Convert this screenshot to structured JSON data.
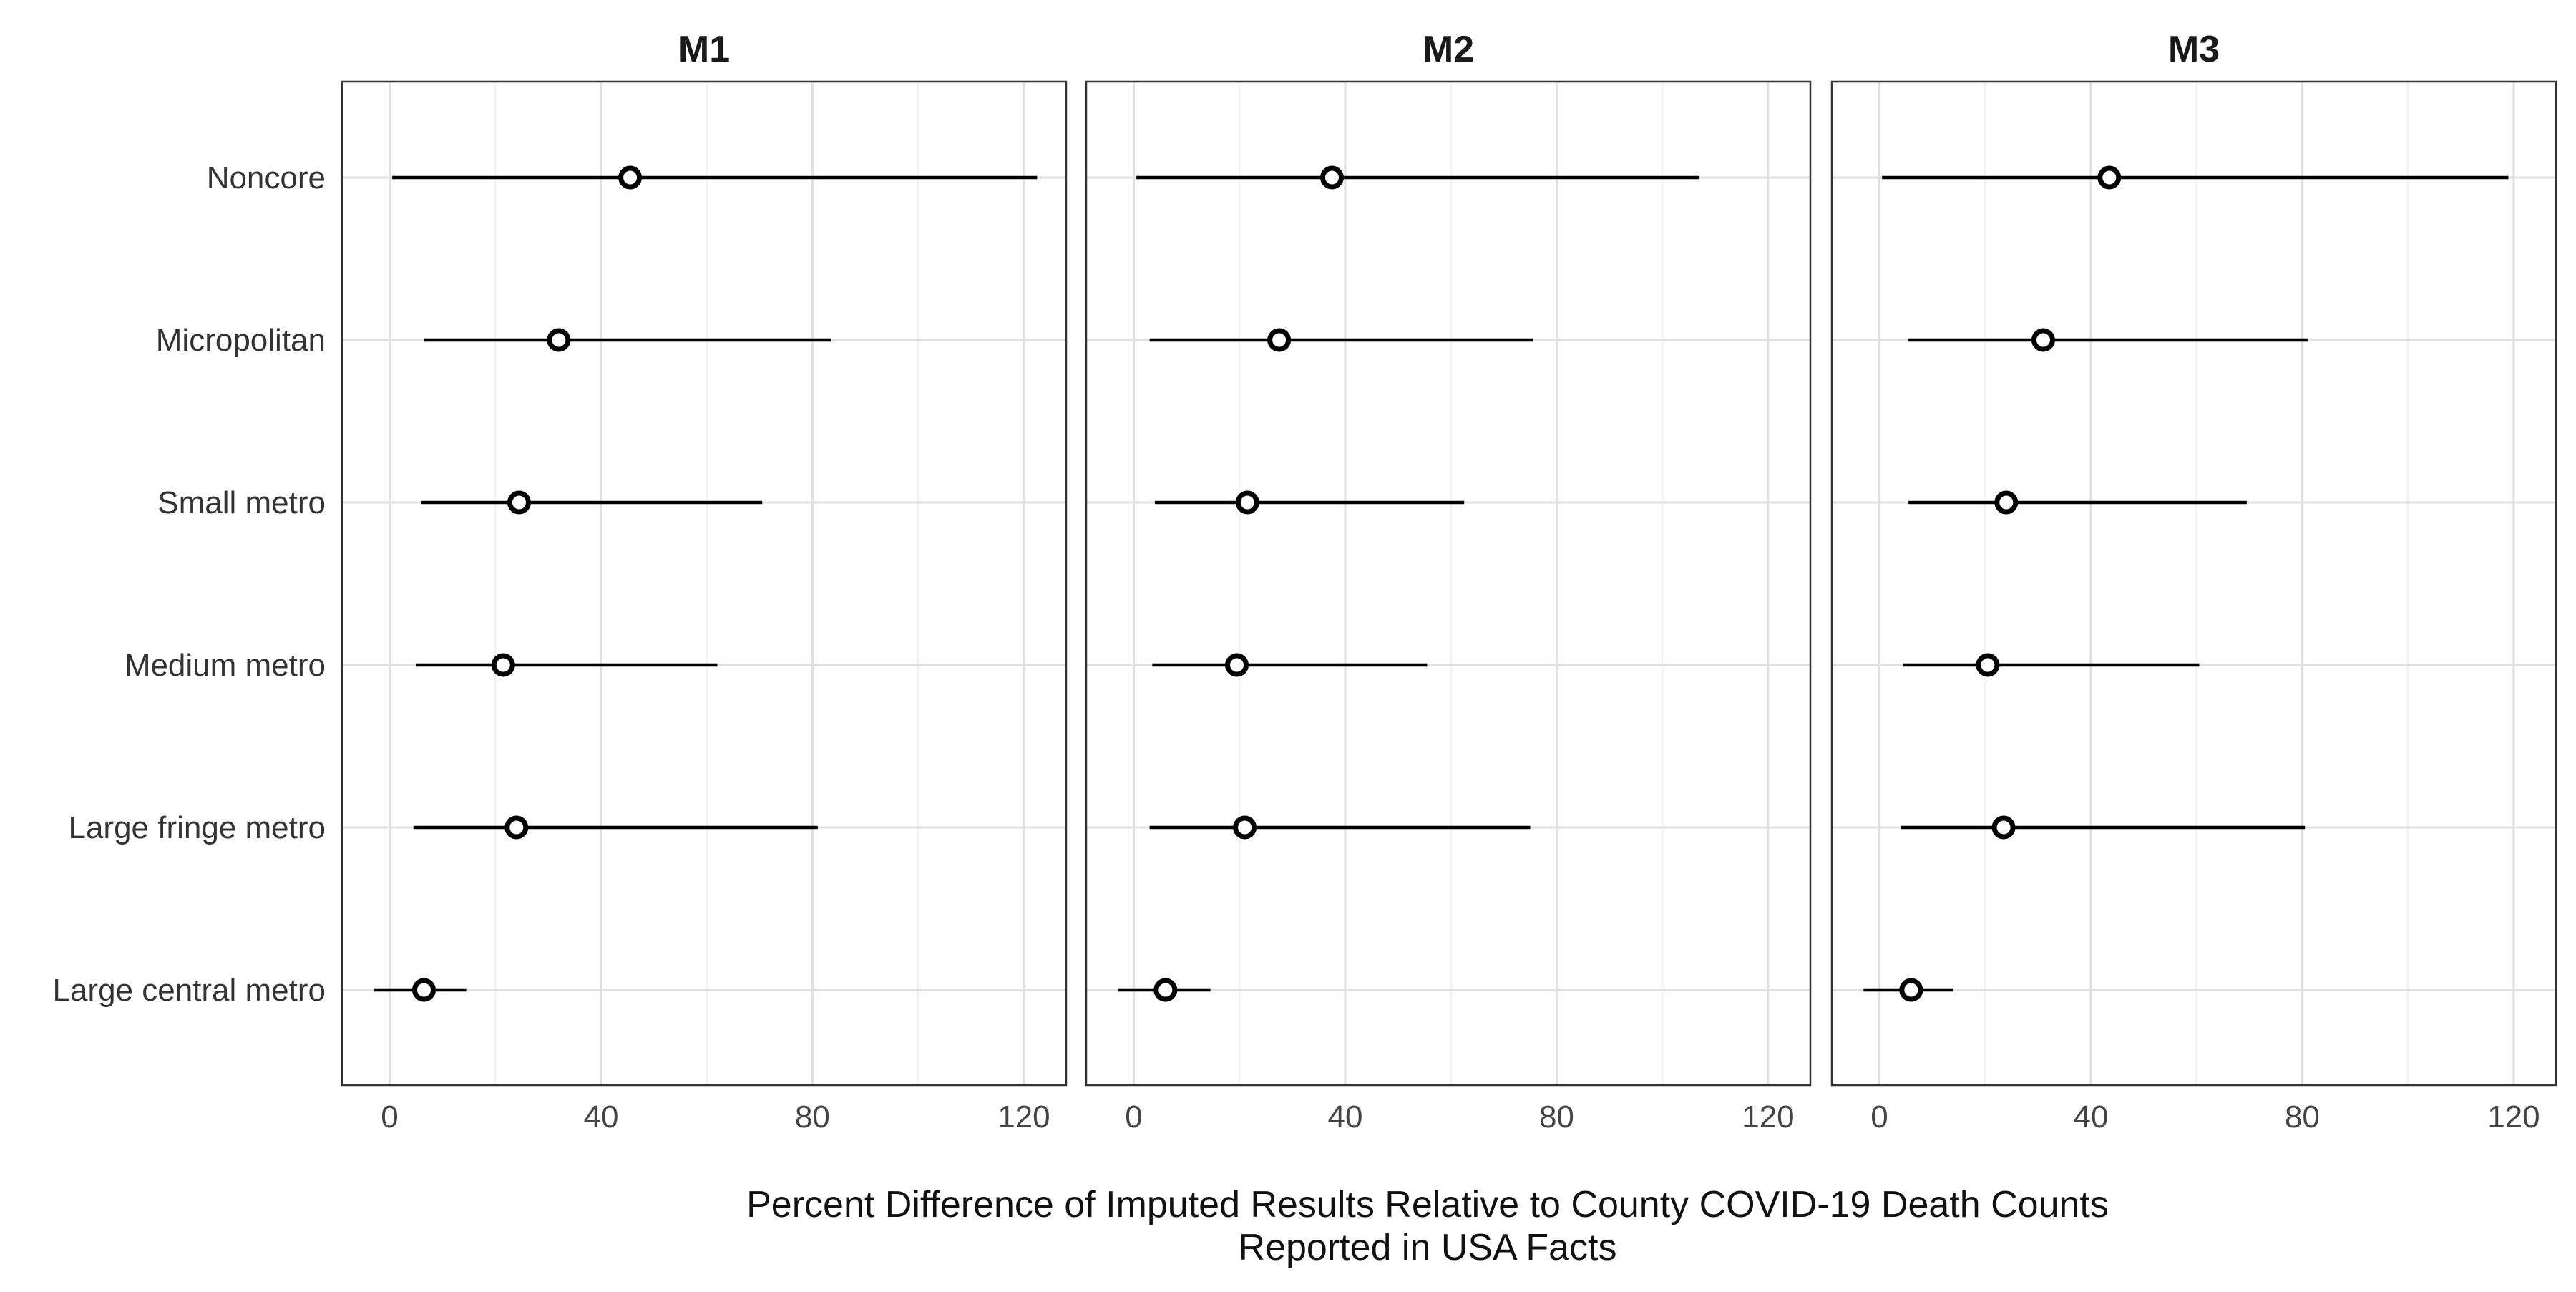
{
  "chart_data": {
    "type": "scatter",
    "xlabel_lines": [
      "Percent Difference of Imputed Results Relative to County COVID-19 Death Counts",
      "Reported in USA Facts"
    ],
    "categories": [
      "Noncore",
      "Micropolitan",
      "Small metro",
      "Medium metro",
      "Large fringe metro",
      "Large central metro"
    ],
    "xlim": [
      -9,
      128
    ],
    "x_ticks": [
      0,
      40,
      80,
      120
    ],
    "x_tick_labels": [
      "0",
      "40",
      "80",
      "120"
    ],
    "grid": true,
    "colors": {
      "marker_stroke": "#000000",
      "marker_fill": "#ffffff",
      "line": "#000000",
      "grid_major": "#e0e0e0",
      "grid_minor": "#f0f0f0",
      "panel_border": "#333333"
    },
    "panels": [
      {
        "title": "M1",
        "points": [
          {
            "category": "Noncore",
            "estimate": 45.5,
            "lower": 0.5,
            "upper": 122.5
          },
          {
            "category": "Micropolitan",
            "estimate": 32.0,
            "lower": 6.5,
            "upper": 83.5
          },
          {
            "category": "Small metro",
            "estimate": 24.5,
            "lower": 6.0,
            "upper": 70.5
          },
          {
            "category": "Medium metro",
            "estimate": 21.5,
            "lower": 5.0,
            "upper": 62.0
          },
          {
            "category": "Large fringe metro",
            "estimate": 24.0,
            "lower": 4.5,
            "upper": 81.0
          },
          {
            "category": "Large central metro",
            "estimate": 6.5,
            "lower": -3.0,
            "upper": 14.5
          }
        ]
      },
      {
        "title": "M2",
        "points": [
          {
            "category": "Noncore",
            "estimate": 37.5,
            "lower": 0.5,
            "upper": 107.0
          },
          {
            "category": "Micropolitan",
            "estimate": 27.5,
            "lower": 3.0,
            "upper": 75.5
          },
          {
            "category": "Small metro",
            "estimate": 21.5,
            "lower": 4.0,
            "upper": 62.5
          },
          {
            "category": "Medium metro",
            "estimate": 19.5,
            "lower": 3.5,
            "upper": 55.5
          },
          {
            "category": "Large fringe metro",
            "estimate": 21.0,
            "lower": 3.0,
            "upper": 75.0
          },
          {
            "category": "Large central metro",
            "estimate": 6.0,
            "lower": -3.0,
            "upper": 14.5
          }
        ]
      },
      {
        "title": "M3",
        "points": [
          {
            "category": "Noncore",
            "estimate": 43.5,
            "lower": 0.5,
            "upper": 119.0
          },
          {
            "category": "Micropolitan",
            "estimate": 31.0,
            "lower": 5.5,
            "upper": 81.0
          },
          {
            "category": "Small metro",
            "estimate": 24.0,
            "lower": 5.5,
            "upper": 69.5
          },
          {
            "category": "Medium metro",
            "estimate": 20.5,
            "lower": 4.5,
            "upper": 60.5
          },
          {
            "category": "Large fringe metro",
            "estimate": 23.5,
            "lower": 4.0,
            "upper": 80.5
          },
          {
            "category": "Large central metro",
            "estimate": 6.0,
            "lower": -3.0,
            "upper": 14.0
          }
        ]
      }
    ]
  }
}
